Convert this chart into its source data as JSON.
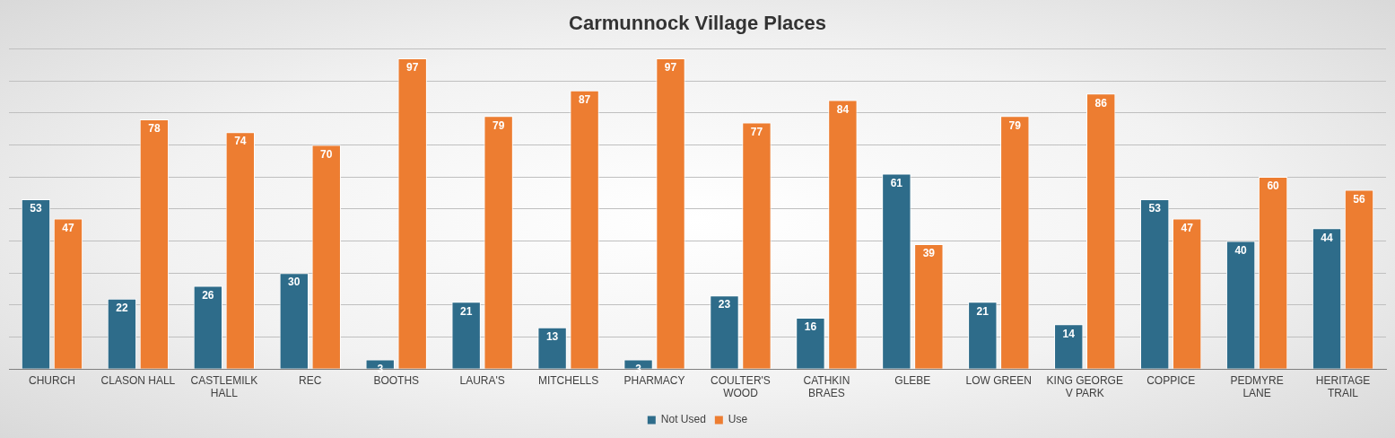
{
  "chart_data": {
    "type": "bar",
    "title": "Carmunnock Village Places",
    "categories": [
      "CHURCH",
      "CLASON HALL",
      "CASTLEMILK HALL",
      "REC",
      "BOOTHS",
      "LAURA'S",
      "MITCHELLS",
      "PHARMACY",
      "COULTER'S WOOD",
      "CATHKIN BRAES",
      "GLEBE",
      "LOW GREEN",
      "KING GEORGE V PARK",
      "COPPICE",
      "PEDMYRE LANE",
      "HERITAGE TRAIL"
    ],
    "series": [
      {
        "name": "Not Used",
        "color": "#2e6c8a",
        "values": [
          53,
          22,
          26,
          30,
          3,
          21,
          13,
          3,
          23,
          16,
          61,
          21,
          14,
          53,
          40,
          44
        ]
      },
      {
        "name": "Use",
        "color": "#ed7d31",
        "values": [
          47,
          78,
          74,
          70,
          97,
          79,
          87,
          97,
          77,
          84,
          39,
          79,
          86,
          47,
          60,
          56
        ]
      }
    ],
    "ylim": [
      0,
      100
    ],
    "yticks": [
      {
        "value": 0,
        "label": null
      },
      {
        "value": 10,
        "label": null
      },
      {
        "value": 20,
        "label": null
      },
      {
        "value": 30,
        "label": null
      },
      {
        "value": 40,
        "label": null
      },
      {
        "value": 50,
        "label": null
      },
      {
        "value": 60,
        "label": null
      },
      {
        "value": 70,
        "label": null
      },
      {
        "value": 80,
        "label": null
      },
      {
        "value": 90,
        "label": null
      },
      {
        "value": 100,
        "label": null
      }
    ],
    "tick_labels": "x",
    "grid": "y",
    "legend": "bottom",
    "data_labels": true
  }
}
